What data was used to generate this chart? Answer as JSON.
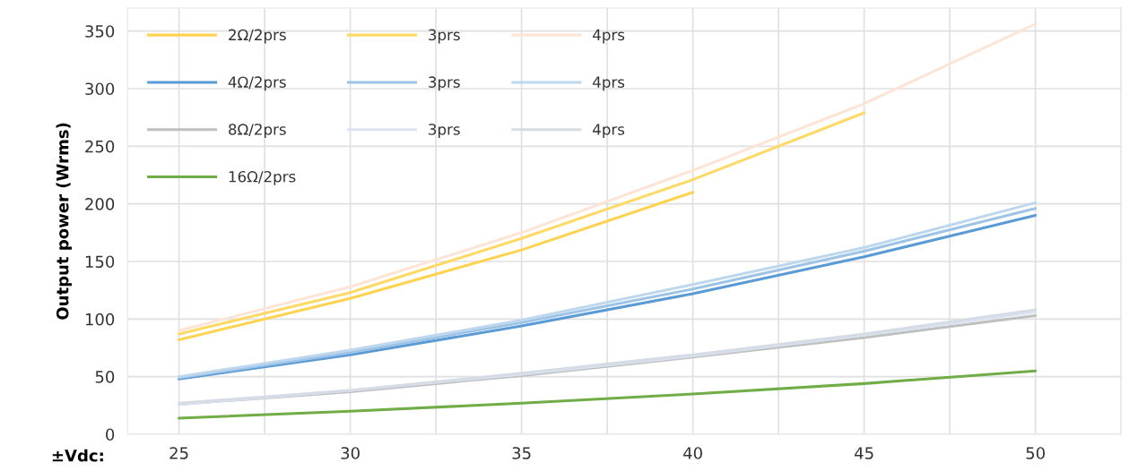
{
  "chart_data": {
    "type": "line",
    "ylabel": "Output power (Wrms)",
    "xlabel": "±Vdc:",
    "xlim": [
      23.5,
      52.5
    ],
    "xticks": [
      25,
      {
        "value": 27.5,
        "label": null
      },
      30,
      {
        "value": 32.5,
        "label": null
      },
      35,
      {
        "value": 37.5,
        "label": null
      },
      40,
      {
        "value": 42.5,
        "label": null
      },
      45,
      {
        "value": 47.5,
        "label": null
      },
      50,
      {
        "value": 52.5,
        "label": null
      }
    ],
    "ylim": [
      0,
      370
    ],
    "yticks": [
      0,
      50,
      100,
      150,
      200,
      250,
      300,
      350
    ],
    "grid": true,
    "legend": "top left",
    "marker": "none",
    "line_style": "solid",
    "series": [
      {
        "name": "2Ω/2prs",
        "color": "#ffd24f",
        "x": [
          25,
          30,
          35,
          40
        ],
        "values": [
          82,
          118,
          160,
          210
        ]
      },
      {
        "name": "3prs",
        "color": "#ffd966",
        "x": [
          25,
          30,
          35,
          40,
          45
        ],
        "values": [
          87,
          123,
          170,
          221,
          279
        ]
      },
      {
        "name": "4prs",
        "color": "#fce4d6",
        "x": [
          25,
          30,
          35,
          40,
          45,
          50
        ],
        "values": [
          90,
          128,
          175,
          229,
          287,
          356
        ]
      },
      {
        "name": "4Ω/2prs",
        "color": "#5b9bd5",
        "x": [
          25,
          30,
          35,
          40,
          45,
          50
        ],
        "values": [
          48,
          69,
          94,
          122,
          154,
          190
        ]
      },
      {
        "name": "3prs",
        "color": "#9dc3e6",
        "x": [
          25,
          30,
          35,
          40,
          45,
          50
        ],
        "values": [
          49,
          71,
          97,
          126,
          159,
          196
        ]
      },
      {
        "name": "4prs",
        "color": "#bdd7ee",
        "x": [
          25,
          30,
          35,
          40,
          45,
          50
        ],
        "values": [
          50,
          73,
          99,
          130,
          162,
          201
        ]
      },
      {
        "name": "8Ω/2prs",
        "color": "#bfbfbf",
        "x": [
          25,
          30,
          35,
          40,
          45,
          50
        ],
        "values": [
          26,
          37,
          51,
          67,
          84,
          103
        ]
      },
      {
        "name": "3prs",
        "color": "#dae3f3",
        "x": [
          25,
          30,
          35,
          40,
          45,
          50
        ],
        "values": [
          26,
          38,
          52,
          68,
          86,
          106
        ]
      },
      {
        "name": "4prs",
        "color": "#d6dce5",
        "x": [
          25,
          30,
          35,
          40,
          45,
          50
        ],
        "values": [
          27,
          38,
          53,
          69,
          87,
          108
        ]
      },
      {
        "name": "16Ω/2prs",
        "color": "#70ad47",
        "x": [
          25,
          30,
          35,
          40,
          45,
          50
        ],
        "values": [
          14,
          20,
          27,
          35,
          44,
          55
        ]
      }
    ]
  }
}
